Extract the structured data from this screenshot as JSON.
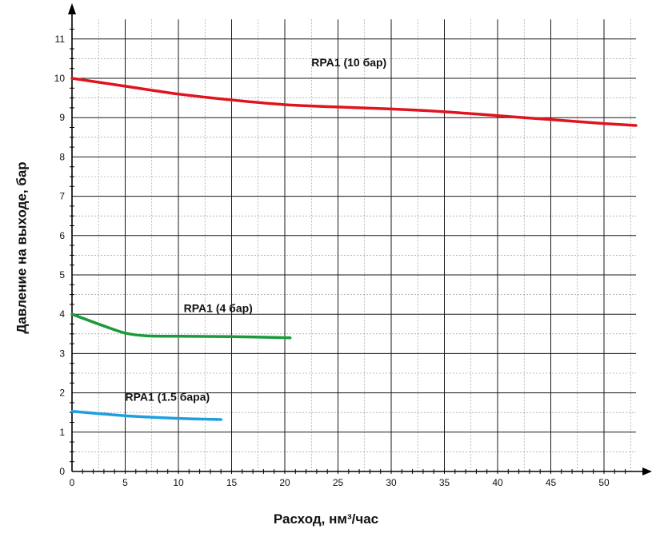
{
  "chart_data": {
    "type": "line",
    "title": "",
    "xlabel": "Расход, нм³/час",
    "ylabel": "Давление на выходе, бар",
    "xlim": [
      0,
      53
    ],
    "ylim": [
      0,
      11.5
    ],
    "x_ticks": [
      0,
      5,
      10,
      15,
      20,
      25,
      30,
      35,
      40,
      45,
      50
    ],
    "y_ticks": [
      0,
      1,
      2,
      3,
      4,
      5,
      6,
      7,
      8,
      9,
      10,
      11
    ],
    "grid": true,
    "series": [
      {
        "name": "RPA1 (10 бар)",
        "color": "#e0141e",
        "x": [
          0,
          5,
          10,
          15,
          20,
          25,
          30,
          35,
          40,
          45,
          50,
          53
        ],
        "y": [
          10.0,
          9.8,
          9.6,
          9.45,
          9.33,
          9.27,
          9.22,
          9.15,
          9.05,
          8.95,
          8.85,
          8.8
        ]
      },
      {
        "name": "RPA1 (4 бар)",
        "color": "#1a9a3a",
        "x": [
          0,
          3,
          5,
          7,
          10,
          15,
          20.5
        ],
        "y": [
          4.0,
          3.7,
          3.52,
          3.45,
          3.44,
          3.43,
          3.4
        ]
      },
      {
        "name": "RPA1 (1.5 бара)",
        "color": "#1ea0e0",
        "x": [
          0,
          3,
          6,
          10,
          14
        ],
        "y": [
          1.53,
          1.46,
          1.4,
          1.35,
          1.32
        ]
      }
    ]
  }
}
